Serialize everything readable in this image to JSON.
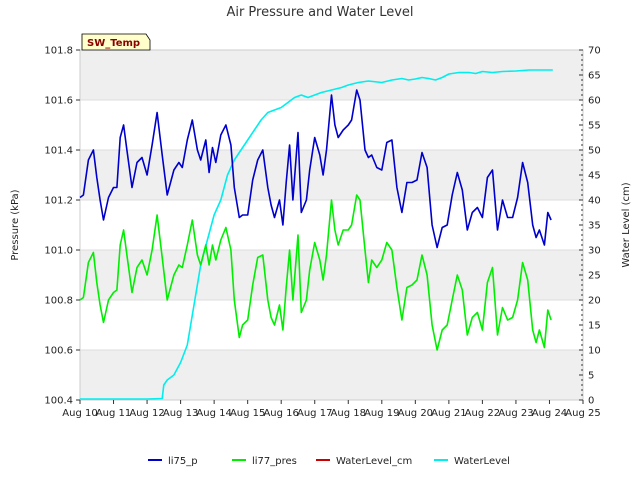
{
  "chart_data": {
    "type": "line",
    "title": "Air Pressure and Water Level",
    "badge": "SW_Temp",
    "ylabel": "Pressure (kPa)",
    "y2label": "Water Level (cm)",
    "xlabel": "",
    "xticks": [
      "Aug 10",
      "Aug 11",
      "Aug 12",
      "Aug 13",
      "Aug 14",
      "Aug 15",
      "Aug 16",
      "Aug 17",
      "Aug 18",
      "Aug 19",
      "Aug 20",
      "Aug 21",
      "Aug 22",
      "Aug 23",
      "Aug 24",
      "Aug 25"
    ],
    "xlim": [
      0,
      15
    ],
    "ylim": [
      100.4,
      101.8
    ],
    "yticks": [
      "100.4",
      "100.6",
      "100.8",
      "101.0",
      "101.2",
      "101.4",
      "101.6",
      "101.8"
    ],
    "y2lim": [
      0,
      70
    ],
    "y2ticks": [
      "0",
      "5",
      "10",
      "15",
      "20",
      "25",
      "30",
      "35",
      "40",
      "45",
      "50",
      "55",
      "60",
      "65",
      "70"
    ],
    "grid": true,
    "legend_position": "bottom",
    "colors": {
      "li75_p": "#0000cc",
      "li77_pres": "#00ee00",
      "WaterLevel_cm": "#cc0000",
      "WaterLevel": "#00eeee",
      "band": "#efefef",
      "badge_bg": "#ffffcc"
    },
    "series": [
      {
        "name": "li75_p",
        "axis": "left",
        "x": [
          0.0,
          0.1,
          0.25,
          0.4,
          0.5,
          0.6,
          0.7,
          0.85,
          1.0,
          1.1,
          1.2,
          1.3,
          1.4,
          1.55,
          1.7,
          1.85,
          2.0,
          2.15,
          2.3,
          2.45,
          2.6,
          2.8,
          2.95,
          3.05,
          3.2,
          3.35,
          3.5,
          3.6,
          3.75,
          3.85,
          3.95,
          4.05,
          4.2,
          4.35,
          4.5,
          4.6,
          4.75,
          4.85,
          5.0,
          5.15,
          5.3,
          5.45,
          5.6,
          5.7,
          5.8,
          5.95,
          6.05,
          6.15,
          6.25,
          6.35,
          6.5,
          6.6,
          6.75,
          6.85,
          7.0,
          7.15,
          7.25,
          7.35,
          7.5,
          7.6,
          7.7,
          7.85,
          8.0,
          8.1,
          8.25,
          8.35,
          8.5,
          8.6,
          8.7,
          8.85,
          9.0,
          9.15,
          9.3,
          9.45,
          9.6,
          9.75,
          9.9,
          10.05,
          10.2,
          10.35,
          10.5,
          10.65,
          10.8,
          10.95,
          11.1,
          11.25,
          11.4,
          11.55,
          11.7,
          11.85,
          12.0,
          12.15,
          12.3,
          12.45,
          12.6,
          12.75,
          12.9,
          13.05,
          13.2,
          13.35,
          13.5,
          13.6,
          13.7,
          13.85,
          13.95,
          14.05
        ],
        "values": [
          101.21,
          101.22,
          101.36,
          101.4,
          101.29,
          101.2,
          101.12,
          101.21,
          101.25,
          101.25,
          101.45,
          101.5,
          101.4,
          101.25,
          101.35,
          101.37,
          101.3,
          101.42,
          101.55,
          101.38,
          101.22,
          101.32,
          101.35,
          101.33,
          101.44,
          101.52,
          101.4,
          101.36,
          101.44,
          101.31,
          101.41,
          101.35,
          101.46,
          101.5,
          101.42,
          101.25,
          101.13,
          101.14,
          101.14,
          101.28,
          101.36,
          101.4,
          101.25,
          101.18,
          101.13,
          101.2,
          101.1,
          101.27,
          101.42,
          101.2,
          101.47,
          101.15,
          101.2,
          101.32,
          101.45,
          101.38,
          101.3,
          101.4,
          101.62,
          101.5,
          101.45,
          101.48,
          101.5,
          101.52,
          101.64,
          101.6,
          101.4,
          101.37,
          101.38,
          101.33,
          101.32,
          101.43,
          101.44,
          101.25,
          101.15,
          101.27,
          101.27,
          101.28,
          101.39,
          101.33,
          101.1,
          101.01,
          101.09,
          101.1,
          101.22,
          101.31,
          101.24,
          101.08,
          101.15,
          101.17,
          101.13,
          101.29,
          101.32,
          101.08,
          101.2,
          101.13,
          101.13,
          101.21,
          101.35,
          101.27,
          101.1,
          101.05,
          101.08,
          101.02,
          101.15,
          101.12
        ]
      },
      {
        "name": "li77_pres",
        "axis": "left",
        "x": [
          0.0,
          0.1,
          0.25,
          0.4,
          0.5,
          0.6,
          0.7,
          0.85,
          1.0,
          1.1,
          1.2,
          1.3,
          1.4,
          1.55,
          1.7,
          1.85,
          2.0,
          2.15,
          2.3,
          2.45,
          2.6,
          2.8,
          2.95,
          3.05,
          3.2,
          3.35,
          3.5,
          3.6,
          3.75,
          3.85,
          3.95,
          4.05,
          4.2,
          4.35,
          4.5,
          4.6,
          4.75,
          4.85,
          5.0,
          5.15,
          5.3,
          5.45,
          5.6,
          5.7,
          5.8,
          5.95,
          6.05,
          6.15,
          6.25,
          6.35,
          6.5,
          6.6,
          6.75,
          6.85,
          7.0,
          7.15,
          7.25,
          7.35,
          7.5,
          7.6,
          7.7,
          7.85,
          8.0,
          8.1,
          8.25,
          8.35,
          8.5,
          8.6,
          8.7,
          8.85,
          9.0,
          9.15,
          9.3,
          9.45,
          9.6,
          9.75,
          9.9,
          10.05,
          10.2,
          10.35,
          10.5,
          10.65,
          10.8,
          10.95,
          11.1,
          11.25,
          11.4,
          11.55,
          11.7,
          11.85,
          12.0,
          12.15,
          12.3,
          12.45,
          12.6,
          12.75,
          12.9,
          13.05,
          13.2,
          13.35,
          13.5,
          13.6,
          13.7,
          13.85,
          13.95,
          14.05
        ],
        "values": [
          100.8,
          100.81,
          100.95,
          100.99,
          100.87,
          100.78,
          100.71,
          100.8,
          100.83,
          100.84,
          101.02,
          101.08,
          100.98,
          100.83,
          100.93,
          100.96,
          100.9,
          101.0,
          101.14,
          100.97,
          100.8,
          100.9,
          100.94,
          100.93,
          101.02,
          101.12,
          100.98,
          100.94,
          101.02,
          100.94,
          101.02,
          100.96,
          101.04,
          101.09,
          101.0,
          100.8,
          100.65,
          100.7,
          100.72,
          100.86,
          100.97,
          100.98,
          100.8,
          100.73,
          100.7,
          100.78,
          100.68,
          100.85,
          101.0,
          100.8,
          101.06,
          100.75,
          100.8,
          100.92,
          101.03,
          100.96,
          100.88,
          100.98,
          101.2,
          101.08,
          101.02,
          101.08,
          101.08,
          101.1,
          101.22,
          101.2,
          101.0,
          100.87,
          100.96,
          100.93,
          100.96,
          101.03,
          101.0,
          100.85,
          100.72,
          100.85,
          100.86,
          100.88,
          100.98,
          100.9,
          100.7,
          100.6,
          100.68,
          100.7,
          100.8,
          100.9,
          100.84,
          100.66,
          100.73,
          100.75,
          100.68,
          100.87,
          100.93,
          100.66,
          100.77,
          100.72,
          100.73,
          100.8,
          100.95,
          100.88,
          100.68,
          100.63,
          100.68,
          100.61,
          100.76,
          100.72
        ]
      },
      {
        "name": "WaterLevel_cm",
        "axis": "right",
        "x": [],
        "values": []
      },
      {
        "name": "WaterLevel",
        "axis": "right",
        "x": [
          0.0,
          0.5,
          1.0,
          1.5,
          2.0,
          2.45,
          2.5,
          2.6,
          2.8,
          3.0,
          3.2,
          3.4,
          3.6,
          3.8,
          4.0,
          4.2,
          4.4,
          4.6,
          4.8,
          5.0,
          5.2,
          5.4,
          5.6,
          5.8,
          6.0,
          6.2,
          6.4,
          6.6,
          6.8,
          7.0,
          7.2,
          7.5,
          7.8,
          8.0,
          8.3,
          8.6,
          9.0,
          9.3,
          9.6,
          9.8,
          10.0,
          10.2,
          10.4,
          10.6,
          10.8,
          11.0,
          11.3,
          11.6,
          11.8,
          12.0,
          12.3,
          12.6,
          13.0,
          13.4,
          13.8,
          14.1
        ],
        "values": [
          0.2,
          0.2,
          0.2,
          0.2,
          0.2,
          0.3,
          3.0,
          4.0,
          5.0,
          7.5,
          11.0,
          19.0,
          27.0,
          32.0,
          37.0,
          40.0,
          45.0,
          48.0,
          50.0,
          52.0,
          54.0,
          56.0,
          57.5,
          58.0,
          58.5,
          59.5,
          60.5,
          61.0,
          60.5,
          61.0,
          61.5,
          62.0,
          62.5,
          63.0,
          63.5,
          63.8,
          63.5,
          64.0,
          64.3,
          64.0,
          64.2,
          64.5,
          64.3,
          64.0,
          64.5,
          65.2,
          65.5,
          65.5,
          65.3,
          65.7,
          65.5,
          65.7,
          65.8,
          66.0,
          66.0,
          66.0
        ]
      }
    ]
  }
}
